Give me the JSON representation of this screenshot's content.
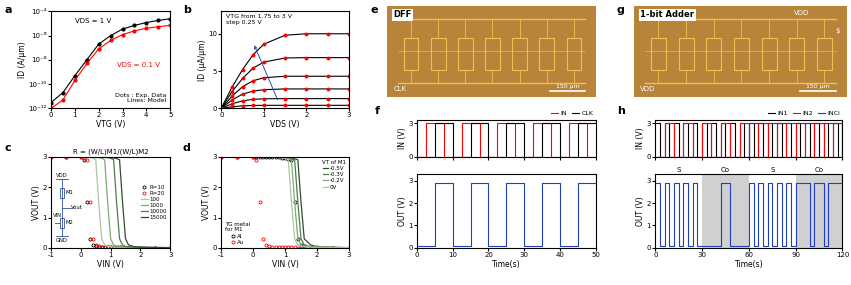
{
  "chart_data": [
    {
      "panel": "a",
      "type": "line",
      "x_label": "VTG (V)",
      "y_label": "ID (A/μm)",
      "log": "y",
      "xlim": [
        0,
        5
      ],
      "xticks": [
        0,
        1,
        2,
        3,
        4,
        5
      ],
      "ylim": [
        1e-12,
        0.0001
      ],
      "yticks": [
        {
          "value": 1e-12,
          "label": "10⁻¹²"
        },
        {
          "value": 1e-10,
          "label": "10⁻¹⁰"
        },
        {
          "value": 1e-08,
          "label": "10⁻⁸"
        },
        {
          "value": 1e-06,
          "label": "10⁻⁶"
        },
        {
          "value": 0.0001,
          "label": "10⁻⁴"
        }
      ],
      "x": [
        0,
        0.5,
        1,
        1.5,
        2,
        2.5,
        3,
        3.5,
        4,
        4.5,
        5
      ],
      "series": [
        {
          "name": "VDS = 1 V",
          "color": "black",
          "marker": "o",
          "line_style": "solid",
          "values": [
            3e-12,
            2e-11,
            5e-10,
            1e-08,
            2e-07,
            1e-06,
            3.5e-06,
            7e-06,
            1.2e-05,
            1.8e-05,
            2.5e-05
          ]
        },
        {
          "name": "VDS = 0.1 V",
          "color": "red",
          "marker": "o",
          "line_style": "solid",
          "values": [
            1e-12,
            5e-12,
            2e-10,
            5e-09,
            8e-08,
            4e-07,
            1.2e-06,
            2.5e-06,
            4e-06,
            5.5e-06,
            7e-06
          ]
        }
      ],
      "annotation": "Dots : Exp. Data\nLines: Model"
    },
    {
      "panel": "b",
      "type": "line",
      "x_label": "VDS (V)",
      "y_label": "ID (μA/μm)",
      "xlim": [
        0,
        3
      ],
      "xticks": [
        0,
        1,
        2,
        3
      ],
      "ylim": [
        0,
        13
      ],
      "yticks": [
        0,
        5,
        10
      ],
      "color": "red",
      "marker": "o",
      "x": [
        0,
        0.25,
        0.5,
        0.75,
        1,
        1.5,
        2,
        2.5,
        3
      ],
      "series": [
        {
          "color": "black",
          "values": [
            0,
            0.2,
            0.33,
            0.38,
            0.4,
            0.4,
            0.4,
            0.4,
            0.4
          ]
        },
        {
          "color": "black",
          "values": [
            0,
            0.6,
            1.0,
            1.2,
            1.27,
            1.3,
            1.3,
            1.3,
            1.3
          ]
        },
        {
          "color": "black",
          "values": [
            0,
            1.1,
            1.9,
            2.3,
            2.5,
            2.6,
            2.6,
            2.6,
            2.6
          ]
        },
        {
          "color": "black",
          "values": [
            0,
            1.6,
            2.9,
            3.7,
            4.1,
            4.3,
            4.3,
            4.3,
            4.3
          ]
        },
        {
          "color": "black",
          "values": [
            0,
            2.2,
            4.0,
            5.4,
            6.2,
            6.75,
            6.8,
            6.8,
            6.8
          ]
        },
        {
          "color": "black",
          "values": [
            0,
            2.8,
            5.2,
            7.2,
            8.6,
            9.8,
            10.0,
            10.0,
            10.0
          ]
        }
      ],
      "annotation": "VTG from 1.75 to 3 V\nstep 0.25 V"
    },
    {
      "panel": "c",
      "type": "line",
      "title": "R = (W/L)M1/(W/L)M2",
      "x_label": "VIN (V)",
      "y_label": "VOUT (V)",
      "xlim": [
        -1,
        3
      ],
      "xticks": [
        -1,
        0,
        1,
        2,
        3
      ],
      "ylim": [
        0,
        3
      ],
      "yticks": [
        0,
        1,
        2,
        3
      ],
      "legend": "center right",
      "x": [
        -1,
        -0.5,
        0,
        0.1,
        0.2,
        0.3,
        0.4,
        0.5,
        0.6,
        0.7,
        0.8,
        0.9,
        1.0,
        1.1,
        1.2,
        1.3,
        1.4,
        1.5,
        1.6,
        1.8,
        2,
        2.5,
        3
      ],
      "series": [
        {
          "name": "R=10",
          "color": "black",
          "marker": "o",
          "line_style": "none",
          "values": [
            3,
            3,
            2.98,
            2.9,
            1.5,
            0.3,
            0.1,
            0.05,
            0.04,
            0.03,
            0.03,
            0.02,
            0.02,
            0.02,
            0.02,
            0.02,
            0.01,
            0.01,
            0.01,
            0.01,
            0.01,
            0.01,
            0.01
          ]
        },
        {
          "name": "R=20",
          "color": "red",
          "marker": "o",
          "line_style": "none",
          "values": [
            3,
            3,
            2.99,
            2.97,
            2.9,
            1.5,
            0.3,
            0.1,
            0.06,
            0.04,
            0.03,
            0.03,
            0.02,
            0.02,
            0.02,
            0.02,
            0.02,
            0.01,
            0.01,
            0.01,
            0.01,
            0.01,
            0.01
          ]
        },
        {
          "name": "100",
          "color": "#a8c8a0",
          "line_style": "solid",
          "values": [
            3,
            3,
            3,
            3,
            2.99,
            2.98,
            2.96,
            2.9,
            1.5,
            0.3,
            0.1,
            0.05,
            0.04,
            0.03,
            0.03,
            0.02,
            0.02,
            0.02,
            0.02,
            0.01,
            0.01,
            0.01,
            0.01
          ]
        },
        {
          "name": "1000",
          "color": "#7fa878",
          "line_style": "solid",
          "values": [
            3,
            3,
            3,
            3,
            3,
            3,
            2.99,
            2.98,
            2.97,
            2.95,
            2.9,
            1.5,
            0.3,
            0.1,
            0.05,
            0.04,
            0.03,
            0.03,
            0.02,
            0.02,
            0.02,
            0.01,
            0.01
          ]
        },
        {
          "name": "10000",
          "color": "#4f7f48",
          "line_style": "solid",
          "values": [
            3,
            3,
            3,
            3,
            3,
            3,
            3,
            3,
            2.99,
            2.99,
            2.98,
            2.97,
            2.95,
            2.9,
            1.5,
            0.3,
            0.1,
            0.05,
            0.04,
            0.03,
            0.02,
            0.01,
            0.01
          ]
        },
        {
          "name": "15000",
          "color": "#2f4f2a",
          "line_style": "solid",
          "values": [
            3,
            3,
            3,
            3,
            3,
            3,
            3,
            3,
            3,
            2.99,
            2.99,
            2.98,
            2.97,
            2.96,
            2.94,
            2.9,
            1.5,
            0.3,
            0.1,
            0.04,
            0.03,
            0.02,
            0.01
          ]
        }
      ],
      "circuit": {
        "vdd": "VDD",
        "m1": "M1",
        "out": "Vout",
        "in": "VIN",
        "m2": "M2",
        "gnd": "GND"
      }
    },
    {
      "panel": "d",
      "type": "line",
      "x_label": "VIN (V)",
      "y_label": "VOUT (V)",
      "xlim": [
        -1,
        3
      ],
      "xticks": [
        -1,
        0,
        1,
        2,
        3
      ],
      "ylim": [
        0,
        3
      ],
      "yticks": [
        0,
        1,
        2,
        3
      ],
      "legend": "upper right",
      "legend_titles": {
        "VT": "VT of M1",
        "TG": "TG metal\nfor M1"
      },
      "x": [
        -1,
        -0.5,
        0,
        0.1,
        0.2,
        0.3,
        0.4,
        0.5,
        0.6,
        0.7,
        0.8,
        0.9,
        1.0,
        1.1,
        1.2,
        1.3,
        1.4,
        1.5,
        1.6,
        1.8,
        2,
        2.5,
        3
      ],
      "series": [
        {
          "name": "Al",
          "group": "TG",
          "color": "black",
          "marker": "o",
          "line_style": "none",
          "values": [
            3,
            3,
            3,
            3,
            3,
            3,
            3,
            3,
            2.99,
            2.99,
            2.98,
            2.97,
            2.96,
            2.94,
            2.9,
            1.5,
            0.3,
            0.1,
            0.05,
            0.03,
            0.02,
            0.01,
            0.01
          ]
        },
        {
          "name": "Au",
          "group": "TG",
          "color": "red",
          "marker": "o",
          "line_style": "none",
          "values": [
            3,
            3,
            2.98,
            2.9,
            1.5,
            0.3,
            0.1,
            0.05,
            0.04,
            0.03,
            0.03,
            0.02,
            0.02,
            0.02,
            0.02,
            0.02,
            0.01,
            0.01,
            0.01,
            0.01,
            0.01,
            0.01,
            0.01
          ]
        },
        {
          "name": "-0.5V",
          "group": "VT",
          "color": "#2f4f2a",
          "line_style": "solid",
          "values": [
            3,
            3,
            3,
            3,
            3,
            3,
            3,
            3,
            3,
            3,
            2.99,
            2.98,
            2.97,
            2.96,
            2.95,
            2.93,
            2.9,
            1.5,
            0.3,
            0.1,
            0.04,
            0.02,
            0.01
          ]
        },
        {
          "name": "-0.3V",
          "group": "VT",
          "color": "#4f7f48",
          "line_style": "solid",
          "values": [
            3,
            3,
            3,
            3,
            3,
            3,
            3,
            3,
            3,
            2.99,
            2.99,
            2.98,
            2.97,
            2.96,
            2.94,
            2.9,
            1.5,
            0.3,
            0.1,
            0.04,
            0.03,
            0.02,
            0.01
          ]
        },
        {
          "name": "-0.2V",
          "group": "VT",
          "color": "#7fa878",
          "line_style": "solid",
          "values": [
            3,
            3,
            3,
            3,
            3,
            3,
            3,
            3,
            2.99,
            2.99,
            2.98,
            2.97,
            2.96,
            2.94,
            2.9,
            1.5,
            0.3,
            0.1,
            0.05,
            0.03,
            0.02,
            0.01,
            0.01
          ]
        },
        {
          "name": "0V",
          "group": "VT",
          "color": "#a8c8a0",
          "line_style": "solid",
          "values": [
            3,
            3,
            3,
            3,
            3,
            3,
            3,
            3,
            2.99,
            2.99,
            2.98,
            2.97,
            2.95,
            2.9,
            1.5,
            0.3,
            0.1,
            0.05,
            0.04,
            0.03,
            0.02,
            0.01,
            0.01
          ]
        }
      ]
    },
    {
      "panel": "e",
      "type": "micrograph",
      "labels": [
        "DFF",
        "CLK"
      ],
      "scale_bar": "150 μm"
    },
    {
      "panel": "f",
      "type": "line",
      "y_label": "IN (V)",
      "xlim": [
        0,
        50
      ],
      "xticks": [
        0,
        10,
        20,
        30,
        40,
        50
      ],
      "ylim": [
        0,
        3.3
      ],
      "yticks": [
        0,
        3
      ],
      "tick_labels": "y",
      "legend": "upper right",
      "series": [
        {
          "name": "IN",
          "color": "red",
          "x": [
            0,
            2.5,
            7.5,
            12.5,
            17.5,
            22.5,
            27.5,
            32.5,
            37.5,
            42.5,
            47.5,
            50
          ],
          "values": [
            0,
            3,
            0,
            3,
            0,
            3,
            0,
            3,
            0,
            3,
            0,
            0
          ]
        },
        {
          "name": "CLK",
          "color": "black",
          "x": [
            0,
            5,
            10,
            15,
            20,
            25,
            30,
            35,
            40,
            45,
            50
          ],
          "values": [
            0,
            3,
            0,
            3,
            0,
            3,
            0,
            3,
            0,
            3,
            3
          ]
        }
      ]
    },
    {
      "type": "line",
      "x_label": "Time(s)",
      "y_label": "OUT (V)",
      "xlim": [
        0,
        50
      ],
      "xticks": [
        0,
        10,
        20,
        30,
        40,
        50
      ],
      "ylim": [
        0,
        3.3
      ],
      "yticks": [
        0,
        1,
        2,
        3
      ],
      "series": [
        {
          "color": "#1f3fbf",
          "x": [
            0,
            5,
            10,
            15,
            20,
            25,
            30,
            35,
            40,
            45,
            50
          ],
          "values": [
            0.1,
            2.9,
            0.1,
            2.9,
            0.1,
            2.9,
            0.1,
            2.9,
            0.1,
            2.9,
            2.9
          ]
        }
      ]
    },
    {
      "panel": "g",
      "type": "micrograph",
      "labels": [
        "1-bit Adder",
        "VDD",
        "$"
      ],
      "scale_bar": "150 μm"
    },
    {
      "panel": "h",
      "type": "line",
      "y_label": "IN (V)",
      "xlim": [
        0,
        120
      ],
      "xticks": [
        0,
        30,
        60,
        90,
        120
      ],
      "ylim": [
        0,
        3.3
      ],
      "yticks": [
        0,
        3
      ],
      "tick_labels": "y",
      "legend": "upper right",
      "series": [
        {
          "name": "IN1",
          "color": "black",
          "x": [
            0,
            3,
            6,
            9,
            12,
            15,
            18,
            21,
            24,
            27,
            30,
            33,
            36,
            39,
            42,
            45,
            48,
            51,
            54,
            57,
            60,
            63,
            66,
            69,
            72,
            75,
            78,
            81,
            84,
            87,
            90,
            93,
            96,
            99,
            102,
            105,
            108,
            111,
            114,
            117,
            120
          ],
          "values": [
            3,
            0,
            3,
            0,
            3,
            0,
            3,
            0,
            3,
            0,
            3,
            0,
            3,
            0,
            3,
            0,
            3,
            0,
            3,
            0,
            3,
            0,
            3,
            0,
            3,
            0,
            3,
            0,
            3,
            0,
            3,
            0,
            3,
            0,
            3,
            0,
            3,
            0,
            3,
            0,
            3
          ]
        },
        {
          "name": "IN2",
          "color": "red",
          "x": [
            0,
            6,
            12,
            18,
            24,
            30,
            36,
            42,
            48,
            54,
            60,
            66,
            72,
            78,
            84,
            90,
            96,
            102,
            108,
            114,
            120
          ],
          "values": [
            0,
            3,
            0,
            3,
            0,
            3,
            0,
            3,
            0,
            3,
            0,
            3,
            0,
            3,
            0,
            3,
            0,
            3,
            0,
            3,
            0
          ]
        },
        {
          "name": "INCi",
          "color": "#1f3fbf",
          "x": [
            0,
            60,
            120
          ],
          "values": [
            0,
            3,
            3
          ]
        }
      ]
    },
    {
      "type": "line",
      "x_label": "Time(s)",
      "y_label": "OUT (V)",
      "xlim": [
        0,
        120
      ],
      "xticks": [
        0,
        30,
        60,
        90,
        120
      ],
      "ylim": [
        0,
        3.3
      ],
      "yticks": [
        0,
        1,
        2,
        3
      ],
      "regions": [
        {
          "label": "S",
          "start": 0,
          "end": 30,
          "color": "white"
        },
        {
          "label": "Co",
          "start": 30,
          "end": 60,
          "color": "#d0d0d0"
        },
        {
          "label": "S",
          "start": 60,
          "end": 90,
          "color": "white"
        },
        {
          "label": "Co",
          "start": 90,
          "end": 120,
          "color": "#d0d0d0"
        }
      ],
      "series": [
        {
          "color": "#1f3fbf",
          "x": [
            0,
            3,
            6,
            9,
            12,
            15,
            18,
            21,
            24,
            27,
            30,
            42,
            48,
            60,
            63,
            66,
            69,
            72,
            75,
            78,
            81,
            84,
            87,
            90,
            99,
            102,
            108,
            111,
            120
          ],
          "values": [
            2.9,
            0.1,
            2.9,
            0.1,
            2.9,
            0.1,
            2.9,
            0.1,
            2.9,
            0.1,
            0.1,
            2.9,
            0.1,
            2.9,
            0.1,
            2.9,
            0.1,
            2.9,
            0.1,
            2.9,
            0.1,
            2.9,
            0.1,
            2.9,
            0.1,
            2.9,
            0.1,
            2.9,
            2.9
          ]
        }
      ]
    }
  ]
}
